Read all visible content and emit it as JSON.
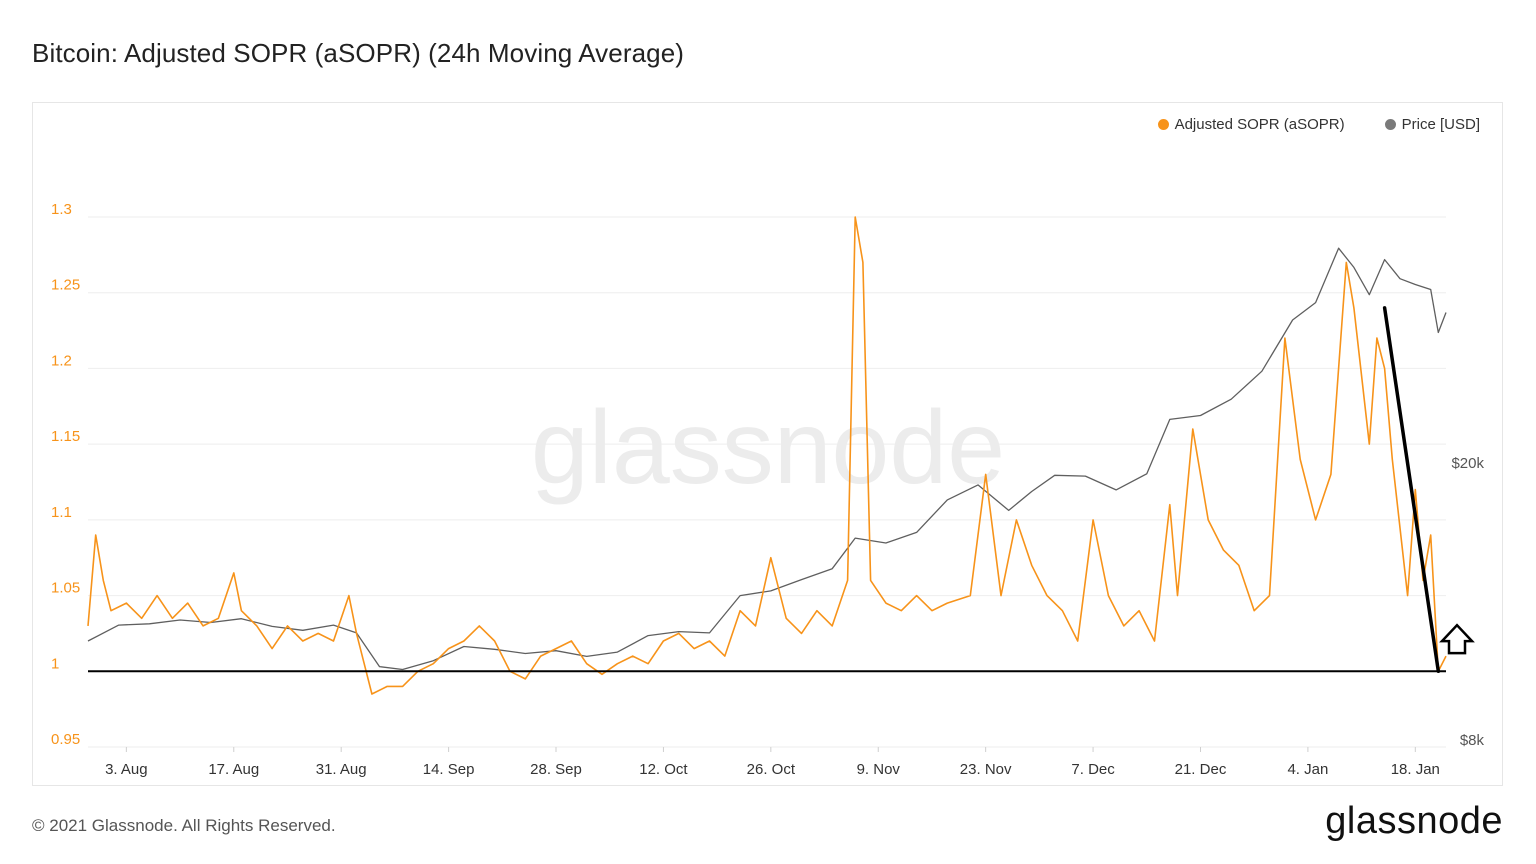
{
  "title": "Bitcoin: Adjusted SOPR (aSOPR) (24h Moving Average)",
  "footer": {
    "copyright": "© 2021 Glassnode. All Rights Reserved.",
    "logo": "glassnode"
  },
  "watermark": "glassnode",
  "colors": {
    "asopr": "#f7931a",
    "price": "#5f5f5f",
    "grid": "#eeeeee",
    "annotation": "#000000"
  },
  "legend": [
    {
      "label": "Adjusted SOPR (aSOPR)",
      "color": "#f7931a"
    },
    {
      "label": "Price [USD]",
      "color": "#7a7a7a"
    }
  ],
  "chart_data": {
    "type": "line",
    "title": "Bitcoin: Adjusted SOPR (aSOPR) (24h Moving Average)",
    "xlabel": "",
    "ylabel": "",
    "x_ticks": [
      "3. Aug",
      "17. Aug",
      "31. Aug",
      "14. Sep",
      "28. Sep",
      "12. Oct",
      "26. Oct",
      "9. Nov",
      "23. Nov",
      "7. Dec",
      "21. Dec",
      "4. Jan",
      "18. Jan"
    ],
    "x_range": [
      "2020-07-29",
      "2021-01-22"
    ],
    "y_left": {
      "ticks": [
        "0.95",
        "1",
        "1.05",
        "1.1",
        "1.15",
        "1.2",
        "1.25",
        "1.3"
      ],
      "range": [
        0.95,
        1.3
      ]
    },
    "y_right": {
      "ticks": [
        "$8k",
        "$20k"
      ],
      "scale": "log"
    },
    "grid": true,
    "legend_position": "top-right",
    "series": [
      {
        "name": "Adjusted SOPR (aSOPR)",
        "axis": "left",
        "color": "#f7931a",
        "points": [
          [
            "2020-07-29",
            1.03
          ],
          [
            "2020-07-30",
            1.09
          ],
          [
            "2020-07-31",
            1.06
          ],
          [
            "2020-08-01",
            1.04
          ],
          [
            "2020-08-03",
            1.045
          ],
          [
            "2020-08-05",
            1.035
          ],
          [
            "2020-08-07",
            1.05
          ],
          [
            "2020-08-09",
            1.035
          ],
          [
            "2020-08-11",
            1.045
          ],
          [
            "2020-08-13",
            1.03
          ],
          [
            "2020-08-15",
            1.035
          ],
          [
            "2020-08-17",
            1.065
          ],
          [
            "2020-08-18",
            1.04
          ],
          [
            "2020-08-20",
            1.03
          ],
          [
            "2020-08-22",
            1.015
          ],
          [
            "2020-08-24",
            1.03
          ],
          [
            "2020-08-26",
            1.02
          ],
          [
            "2020-08-28",
            1.025
          ],
          [
            "2020-08-30",
            1.02
          ],
          [
            "2020-09-01",
            1.05
          ],
          [
            "2020-09-02",
            1.025
          ],
          [
            "2020-09-03",
            1.005
          ],
          [
            "2020-09-04",
            0.985
          ],
          [
            "2020-09-06",
            0.99
          ],
          [
            "2020-09-08",
            0.99
          ],
          [
            "2020-09-10",
            1.0
          ],
          [
            "2020-09-12",
            1.005
          ],
          [
            "2020-09-14",
            1.015
          ],
          [
            "2020-09-16",
            1.02
          ],
          [
            "2020-09-18",
            1.03
          ],
          [
            "2020-09-20",
            1.02
          ],
          [
            "2020-09-22",
            1.0
          ],
          [
            "2020-09-24",
            0.995
          ],
          [
            "2020-09-26",
            1.01
          ],
          [
            "2020-09-28",
            1.015
          ],
          [
            "2020-09-30",
            1.02
          ],
          [
            "2020-10-02",
            1.005
          ],
          [
            "2020-10-04",
            0.998
          ],
          [
            "2020-10-06",
            1.005
          ],
          [
            "2020-10-08",
            1.01
          ],
          [
            "2020-10-10",
            1.005
          ],
          [
            "2020-10-12",
            1.02
          ],
          [
            "2020-10-14",
            1.025
          ],
          [
            "2020-10-16",
            1.015
          ],
          [
            "2020-10-18",
            1.02
          ],
          [
            "2020-10-20",
            1.01
          ],
          [
            "2020-10-22",
            1.04
          ],
          [
            "2020-10-24",
            1.03
          ],
          [
            "2020-10-26",
            1.075
          ],
          [
            "2020-10-28",
            1.035
          ],
          [
            "2020-10-30",
            1.025
          ],
          [
            "2020-11-01",
            1.04
          ],
          [
            "2020-11-03",
            1.03
          ],
          [
            "2020-11-05",
            1.06
          ],
          [
            "2020-11-06",
            1.3
          ],
          [
            "2020-11-07",
            1.27
          ],
          [
            "2020-11-08",
            1.06
          ],
          [
            "2020-11-10",
            1.045
          ],
          [
            "2020-11-12",
            1.04
          ],
          [
            "2020-11-14",
            1.05
          ],
          [
            "2020-11-16",
            1.04
          ],
          [
            "2020-11-18",
            1.045
          ],
          [
            "2020-11-21",
            1.05
          ],
          [
            "2020-11-23",
            1.13
          ],
          [
            "2020-11-25",
            1.05
          ],
          [
            "2020-11-27",
            1.1
          ],
          [
            "2020-11-29",
            1.07
          ],
          [
            "2020-12-01",
            1.05
          ],
          [
            "2020-12-03",
            1.04
          ],
          [
            "2020-12-05",
            1.02
          ],
          [
            "2020-12-07",
            1.1
          ],
          [
            "2020-12-09",
            1.05
          ],
          [
            "2020-12-11",
            1.03
          ],
          [
            "2020-12-13",
            1.04
          ],
          [
            "2020-12-15",
            1.02
          ],
          [
            "2020-12-17",
            1.11
          ],
          [
            "2020-12-18",
            1.05
          ],
          [
            "2020-12-20",
            1.16
          ],
          [
            "2020-12-22",
            1.1
          ],
          [
            "2020-12-24",
            1.08
          ],
          [
            "2020-12-26",
            1.07
          ],
          [
            "2020-12-28",
            1.04
          ],
          [
            "2020-12-30",
            1.05
          ],
          [
            "2021-01-01",
            1.22
          ],
          [
            "2021-01-03",
            1.14
          ],
          [
            "2021-01-05",
            1.1
          ],
          [
            "2021-01-07",
            1.13
          ],
          [
            "2021-01-09",
            1.27
          ],
          [
            "2021-01-10",
            1.24
          ],
          [
            "2021-01-12",
            1.15
          ],
          [
            "2021-01-13",
            1.22
          ],
          [
            "2021-01-14",
            1.2
          ],
          [
            "2021-01-15",
            1.14
          ],
          [
            "2021-01-17",
            1.05
          ],
          [
            "2021-01-18",
            1.12
          ],
          [
            "2021-01-19",
            1.06
          ],
          [
            "2021-01-20",
            1.09
          ],
          [
            "2021-01-21",
            1.0
          ],
          [
            "2021-01-22",
            1.01
          ]
        ]
      },
      {
        "name": "Price [USD]",
        "axis": "right",
        "color": "#5f5f5f",
        "points": [
          [
            "2020-07-29",
            11100
          ],
          [
            "2020-08-02",
            11700
          ],
          [
            "2020-08-06",
            11750
          ],
          [
            "2020-08-10",
            11900
          ],
          [
            "2020-08-14",
            11800
          ],
          [
            "2020-08-18",
            11950
          ],
          [
            "2020-08-22",
            11650
          ],
          [
            "2020-08-26",
            11500
          ],
          [
            "2020-08-30",
            11700
          ],
          [
            "2020-09-02",
            11400
          ],
          [
            "2020-09-05",
            10200
          ],
          [
            "2020-09-08",
            10100
          ],
          [
            "2020-09-12",
            10400
          ],
          [
            "2020-09-16",
            10900
          ],
          [
            "2020-09-20",
            10800
          ],
          [
            "2020-09-24",
            10650
          ],
          [
            "2020-09-28",
            10750
          ],
          [
            "2020-10-02",
            10550
          ],
          [
            "2020-10-06",
            10700
          ],
          [
            "2020-10-10",
            11300
          ],
          [
            "2020-10-14",
            11450
          ],
          [
            "2020-10-18",
            11400
          ],
          [
            "2020-10-22",
            12900
          ],
          [
            "2020-10-26",
            13100
          ],
          [
            "2020-10-30",
            13600
          ],
          [
            "2020-11-03",
            14100
          ],
          [
            "2020-11-06",
            15600
          ],
          [
            "2020-11-10",
            15350
          ],
          [
            "2020-11-14",
            15900
          ],
          [
            "2020-11-18",
            17700
          ],
          [
            "2020-11-22",
            18600
          ],
          [
            "2020-11-26",
            17100
          ],
          [
            "2020-11-29",
            18200
          ],
          [
            "2020-12-02",
            19200
          ],
          [
            "2020-12-06",
            19150
          ],
          [
            "2020-12-10",
            18300
          ],
          [
            "2020-12-14",
            19300
          ],
          [
            "2020-12-17",
            23100
          ],
          [
            "2020-12-21",
            23400
          ],
          [
            "2020-12-25",
            24700
          ],
          [
            "2020-12-29",
            27100
          ],
          [
            "2021-01-02",
            32100
          ],
          [
            "2021-01-05",
            34000
          ],
          [
            "2021-01-08",
            40700
          ],
          [
            "2021-01-10",
            38200
          ],
          [
            "2021-01-12",
            34900
          ],
          [
            "2021-01-14",
            39200
          ],
          [
            "2021-01-16",
            36800
          ],
          [
            "2021-01-18",
            36100
          ],
          [
            "2021-01-20",
            35500
          ],
          [
            "2021-01-21",
            30800
          ],
          [
            "2021-01-22",
            32900
          ]
        ]
      }
    ],
    "annotations": [
      {
        "type": "horizontal_line",
        "y": 1.0,
        "color": "#000000"
      },
      {
        "type": "trend_line",
        "from": [
          "2021-01-14",
          1.24
        ],
        "to": [
          "2021-01-21",
          1.0
        ],
        "color": "#000000"
      },
      {
        "type": "up_arrow",
        "at": [
          "2021-01-22",
          1.01
        ]
      }
    ]
  }
}
